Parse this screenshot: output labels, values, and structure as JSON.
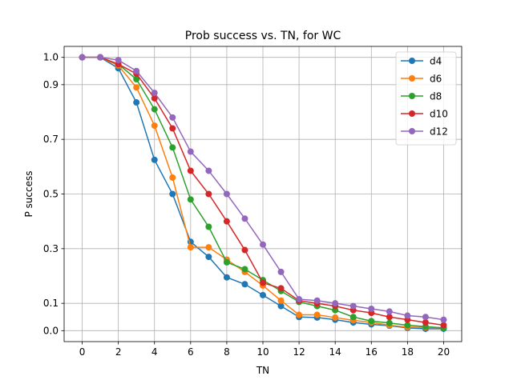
{
  "chart_data": {
    "type": "line",
    "title": "Prob success vs. TN, for WC",
    "xlabel": "TN",
    "ylabel": "P success",
    "xlim": [
      -1,
      21
    ],
    "ylim": [
      -0.04,
      1.04
    ],
    "x_ticks": [
      0,
      2,
      4,
      6,
      8,
      10,
      12,
      14,
      16,
      18,
      20
    ],
    "y_ticks": [
      0.0,
      0.1,
      0.3,
      0.5,
      0.7,
      0.9,
      1.0
    ],
    "x_tick_labels": [
      "0",
      "2",
      "4",
      "6",
      "8",
      "10",
      "12",
      "14",
      "16",
      "18",
      "20"
    ],
    "y_tick_labels": [
      "0.0",
      "0.1",
      "0.3",
      "0.5",
      "0.7",
      "0.9",
      "1.0"
    ],
    "grid": true,
    "legend_position": "top-right",
    "x": [
      0,
      1,
      2,
      3,
      4,
      5,
      6,
      7,
      8,
      9,
      10,
      11,
      12,
      13,
      14,
      15,
      16,
      17,
      18,
      19,
      20
    ],
    "series": [
      {
        "name": "d4",
        "color": "#1f77b4",
        "values": [
          1.0,
          1.0,
          0.96,
          0.835,
          0.625,
          0.5,
          0.325,
          0.27,
          0.195,
          0.17,
          0.13,
          0.09,
          0.05,
          0.048,
          0.04,
          0.03,
          0.023,
          0.018,
          0.01,
          0.007,
          0.007
        ]
      },
      {
        "name": "d6",
        "color": "#ff7f0e",
        "values": [
          1.0,
          1.0,
          0.97,
          0.89,
          0.75,
          0.56,
          0.305,
          0.305,
          0.26,
          0.215,
          0.165,
          0.11,
          0.058,
          0.058,
          0.048,
          0.038,
          0.03,
          0.02,
          0.013,
          0.012,
          0.01
        ]
      },
      {
        "name": "d8",
        "color": "#2ca02c",
        "values": [
          1.0,
          1.0,
          0.975,
          0.92,
          0.81,
          0.67,
          0.48,
          0.38,
          0.25,
          0.225,
          0.185,
          0.145,
          0.105,
          0.09,
          0.075,
          0.05,
          0.035,
          0.028,
          0.02,
          0.015,
          0.01
        ]
      },
      {
        "name": "d10",
        "color": "#d62728",
        "values": [
          1.0,
          1.0,
          0.975,
          0.94,
          0.85,
          0.74,
          0.585,
          0.5,
          0.4,
          0.295,
          0.175,
          0.155,
          0.11,
          0.1,
          0.09,
          0.075,
          0.065,
          0.05,
          0.04,
          0.03,
          0.02
        ]
      },
      {
        "name": "d12",
        "color": "#9467bd",
        "values": [
          1.0,
          1.0,
          0.99,
          0.95,
          0.87,
          0.78,
          0.655,
          0.585,
          0.5,
          0.41,
          0.315,
          0.215,
          0.115,
          0.11,
          0.1,
          0.09,
          0.08,
          0.07,
          0.055,
          0.05,
          0.04
        ]
      }
    ]
  }
}
